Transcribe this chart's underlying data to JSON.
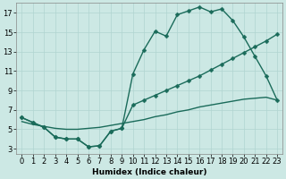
{
  "xlabel": "Humidex (Indice chaleur)",
  "bg_color": "#cce8e4",
  "line_color": "#1a6b5a",
  "grid_color": "#b0d4d0",
  "xlim": [
    -0.5,
    23.5
  ],
  "ylim": [
    2.5,
    18.0
  ],
  "xticks": [
    0,
    1,
    2,
    3,
    4,
    5,
    6,
    7,
    8,
    9,
    10,
    11,
    12,
    13,
    14,
    15,
    16,
    17,
    18,
    19,
    20,
    21,
    22,
    23
  ],
  "yticks": [
    3,
    5,
    7,
    9,
    11,
    13,
    15,
    17
  ],
  "line1_x": [
    0,
    1,
    2,
    3,
    4,
    5,
    6,
    7,
    8,
    9,
    10,
    11,
    12,
    13,
    14,
    15,
    16,
    17,
    18,
    19,
    20,
    21,
    22,
    23
  ],
  "line1_y": [
    6.2,
    5.7,
    5.2,
    4.2,
    4.0,
    4.0,
    3.2,
    3.3,
    4.8,
    5.1,
    10.7,
    13.2,
    15.1,
    14.6,
    16.8,
    17.2,
    17.6,
    17.1,
    17.4,
    16.2,
    14.5,
    12.5,
    10.5,
    8.0
  ],
  "line2_x": [
    0,
    1,
    2,
    3,
    4,
    5,
    6,
    7,
    8,
    9,
    10,
    11,
    12,
    13,
    14,
    15,
    16,
    17,
    18,
    19,
    20,
    21,
    22,
    23
  ],
  "line2_y": [
    6.2,
    5.7,
    5.2,
    4.2,
    4.0,
    4.0,
    3.2,
    3.3,
    4.8,
    5.1,
    7.5,
    8.0,
    8.5,
    9.0,
    9.5,
    10.0,
    10.5,
    11.1,
    11.7,
    12.3,
    12.9,
    13.5,
    14.1,
    14.8
  ],
  "line3_x": [
    0,
    1,
    2,
    3,
    4,
    5,
    6,
    7,
    8,
    9,
    10,
    11,
    12,
    13,
    14,
    15,
    16,
    17,
    18,
    19,
    20,
    21,
    22,
    23
  ],
  "line3_y": [
    5.8,
    5.5,
    5.3,
    5.1,
    5.0,
    5.0,
    5.1,
    5.2,
    5.4,
    5.6,
    5.8,
    6.0,
    6.3,
    6.5,
    6.8,
    7.0,
    7.3,
    7.5,
    7.7,
    7.9,
    8.1,
    8.2,
    8.3,
    8.0
  ],
  "marker_size": 2.5,
  "linewidth": 1.0
}
